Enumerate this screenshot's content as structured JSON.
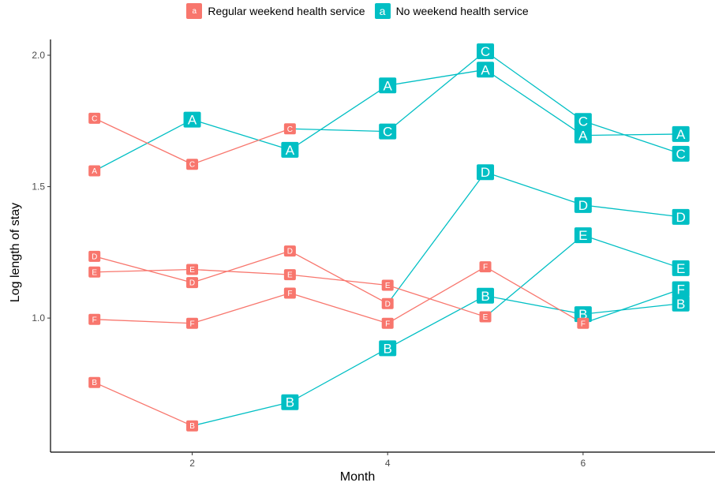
{
  "legend": {
    "items": [
      {
        "key_letter": "a",
        "label": "Regular weekend health service",
        "color": "#F8766D"
      },
      {
        "key_letter": "a",
        "label": "No weekend health service",
        "color": "#00BFC4"
      }
    ]
  },
  "chart_data": {
    "type": "line",
    "xlabel": "Month",
    "ylabel": "Log length of stay",
    "xlim": [
      0.55,
      7.35
    ],
    "ylim": [
      0.49,
      2.06
    ],
    "x_ticks": [
      2,
      4,
      6
    ],
    "y_ticks": [
      1.0,
      1.5,
      2.0
    ],
    "y_tick_labels": [
      "1.0",
      "1.5",
      "2.0"
    ],
    "grid": false,
    "legend_position": "top",
    "groups": [
      {
        "name": "Regular weekend health service",
        "color": "#F8766D",
        "label_size": "small"
      },
      {
        "name": "No weekend health service",
        "color": "#00BFC4",
        "label_size": "large"
      }
    ],
    "series": [
      {
        "name": "A",
        "points": [
          {
            "x": 1,
            "y": 1.56,
            "group": 0
          },
          {
            "x": 2,
            "y": 1.755,
            "group": 1
          },
          {
            "x": 3,
            "y": 1.64,
            "group": 1
          },
          {
            "x": 4,
            "y": 1.885,
            "group": 1
          },
          {
            "x": 5,
            "y": 1.945,
            "group": 1
          },
          {
            "x": 6,
            "y": 1.695,
            "group": 1
          },
          {
            "x": 7,
            "y": 1.7,
            "group": 1
          }
        ]
      },
      {
        "name": "B",
        "points": [
          {
            "x": 1,
            "y": 0.755,
            "group": 0
          },
          {
            "x": 2,
            "y": 0.59,
            "group": 0
          },
          {
            "x": 3,
            "y": 0.68,
            "group": 1
          },
          {
            "x": 4,
            "y": 0.885,
            "group": 1
          },
          {
            "x": 5,
            "y": 1.085,
            "group": 1
          },
          {
            "x": 6,
            "y": 1.015,
            "group": 1
          },
          {
            "x": 7,
            "y": 1.055,
            "group": 1
          }
        ]
      },
      {
        "name": "C",
        "points": [
          {
            "x": 1,
            "y": 1.76,
            "group": 0
          },
          {
            "x": 2,
            "y": 1.585,
            "group": 0
          },
          {
            "x": 3,
            "y": 1.72,
            "group": 0
          },
          {
            "x": 4,
            "y": 1.71,
            "group": 1
          },
          {
            "x": 5,
            "y": 2.015,
            "group": 1
          },
          {
            "x": 6,
            "y": 1.75,
            "group": 1
          },
          {
            "x": 7,
            "y": 1.625,
            "group": 1
          }
        ]
      },
      {
        "name": "D",
        "points": [
          {
            "x": 1,
            "y": 1.235,
            "group": 0
          },
          {
            "x": 2,
            "y": 1.135,
            "group": 0
          },
          {
            "x": 3,
            "y": 1.255,
            "group": 0
          },
          {
            "x": 4,
            "y": 1.055,
            "group": 0
          },
          {
            "x": 5,
            "y": 1.555,
            "group": 1
          },
          {
            "x": 6,
            "y": 1.43,
            "group": 1
          },
          {
            "x": 7,
            "y": 1.385,
            "group": 1
          }
        ]
      },
      {
        "name": "E",
        "points": [
          {
            "x": 1,
            "y": 1.175,
            "group": 0
          },
          {
            "x": 2,
            "y": 1.185,
            "group": 0
          },
          {
            "x": 3,
            "y": 1.165,
            "group": 0
          },
          {
            "x": 4,
            "y": 1.125,
            "group": 0
          },
          {
            "x": 5,
            "y": 1.005,
            "group": 0
          },
          {
            "x": 6,
            "y": 1.315,
            "group": 1
          },
          {
            "x": 7,
            "y": 1.19,
            "group": 1
          }
        ]
      },
      {
        "name": "F",
        "points": [
          {
            "x": 1,
            "y": 0.995,
            "group": 0
          },
          {
            "x": 2,
            "y": 0.98,
            "group": 0
          },
          {
            "x": 3,
            "y": 1.095,
            "group": 0
          },
          {
            "x": 4,
            "y": 0.98,
            "group": 0
          },
          {
            "x": 5,
            "y": 1.195,
            "group": 0
          },
          {
            "x": 6,
            "y": 0.98,
            "group": 0
          },
          {
            "x": 7,
            "y": 1.11,
            "group": 1
          }
        ]
      }
    ]
  }
}
